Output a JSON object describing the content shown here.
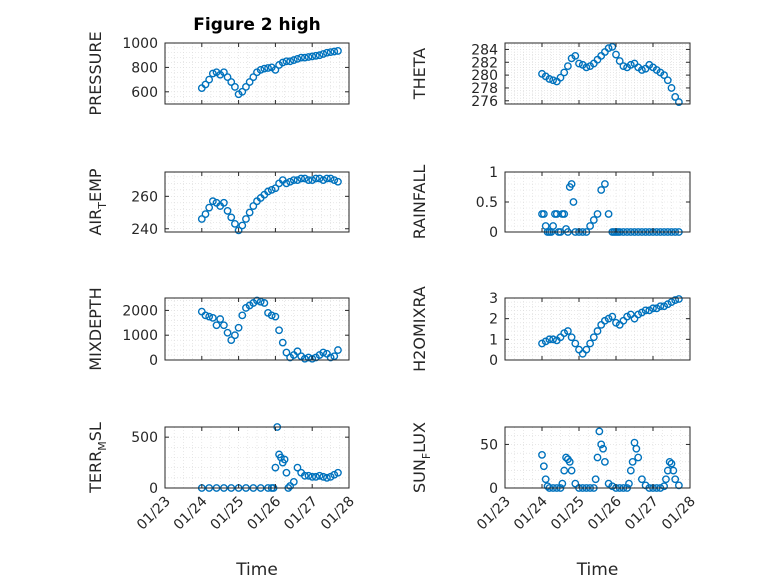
{
  "figure": {
    "title": "Figure 2 high",
    "marker_color": "#0072bd",
    "xaxis": {
      "range": [
        0,
        5
      ],
      "tick_values": [
        0,
        1,
        2,
        3,
        4,
        5
      ],
      "tick_labels": [
        "01/23",
        "01/24",
        "01/25",
        "01/26",
        "01/27",
        "01/28"
      ],
      "label": "Time"
    }
  },
  "chart_data": [
    {
      "id": "pressure",
      "type": "scatter",
      "ylabel": {
        "main": "PRESSURE",
        "sub": "",
        "tail": ""
      },
      "ylim": [
        500,
        1000
      ],
      "yticks": [
        600,
        800,
        1000
      ],
      "x": [
        1,
        1.1,
        1.2,
        1.3,
        1.4,
        1.5,
        1.6,
        1.7,
        1.8,
        1.9,
        2,
        2.1,
        2.2,
        2.3,
        2.4,
        2.5,
        2.6,
        2.7,
        2.8,
        2.9,
        3,
        3.1,
        3.2,
        3.3,
        3.4,
        3.5,
        3.6,
        3.7,
        3.8,
        3.9,
        4,
        4.1,
        4.2,
        4.3,
        4.4,
        4.5,
        4.6,
        4.7
      ],
      "y": [
        630,
        660,
        700,
        750,
        760,
        740,
        760,
        720,
        680,
        640,
        580,
        600,
        640,
        680,
        720,
        760,
        780,
        790,
        795,
        800,
        780,
        820,
        840,
        850,
        850,
        860,
        870,
        880,
        880,
        885,
        890,
        895,
        900,
        910,
        920,
        925,
        930,
        935
      ]
    },
    {
      "id": "theta",
      "type": "scatter",
      "ylabel": {
        "main": "THETA",
        "sub": "",
        "tail": ""
      },
      "ylim": [
        275.5,
        285
      ],
      "yticks": [
        276,
        278,
        280,
        282,
        284
      ],
      "x": [
        1,
        1.1,
        1.2,
        1.3,
        1.4,
        1.5,
        1.6,
        1.7,
        1.8,
        1.9,
        2,
        2.1,
        2.2,
        2.3,
        2.4,
        2.5,
        2.6,
        2.7,
        2.8,
        2.9,
        3,
        3.1,
        3.2,
        3.3,
        3.4,
        3.5,
        3.6,
        3.7,
        3.8,
        3.9,
        4,
        4.1,
        4.2,
        4.3,
        4.4,
        4.5,
        4.6,
        4.7
      ],
      "y": [
        280.2,
        279.8,
        279.4,
        279.2,
        279,
        279.6,
        280.4,
        281.4,
        282.6,
        283,
        281.8,
        281.6,
        281.2,
        281.4,
        281.8,
        282.4,
        283,
        283.6,
        284.2,
        284.4,
        283.2,
        282.2,
        281.4,
        281.2,
        281.6,
        281.8,
        281.2,
        280.8,
        281,
        281.6,
        281.2,
        280.8,
        280.4,
        280,
        279.2,
        278,
        276.6,
        275.8
      ]
    },
    {
      "id": "air_temp",
      "type": "scatter",
      "ylabel": {
        "main": "AIR",
        "sub": "T",
        "tail": "EMP"
      },
      "ylim": [
        238,
        275
      ],
      "yticks": [
        240,
        260
      ],
      "x": [
        1,
        1.1,
        1.2,
        1.3,
        1.4,
        1.5,
        1.6,
        1.7,
        1.8,
        1.9,
        2,
        2.1,
        2.2,
        2.3,
        2.4,
        2.5,
        2.6,
        2.7,
        2.8,
        2.9,
        3,
        3.1,
        3.2,
        3.3,
        3.4,
        3.5,
        3.6,
        3.7,
        3.8,
        3.9,
        4,
        4.1,
        4.2,
        4.3,
        4.4,
        4.5,
        4.6,
        4.7
      ],
      "y": [
        246,
        249,
        253,
        257,
        256,
        254,
        256,
        251,
        247,
        243,
        239,
        242,
        246,
        250,
        254,
        257,
        259,
        261,
        263,
        264,
        265,
        268,
        270,
        268,
        269,
        270,
        270,
        271,
        271,
        270,
        270,
        271,
        271,
        270,
        271,
        271,
        270,
        269
      ]
    },
    {
      "id": "rainfall",
      "type": "scatter",
      "ylabel": {
        "main": "RAINFALL",
        "sub": "",
        "tail": ""
      },
      "ylim": [
        0,
        1
      ],
      "yticks": [
        0,
        0.5,
        1
      ],
      "x": [
        1,
        1.05,
        1.1,
        1.15,
        1.2,
        1.25,
        1.3,
        1.35,
        1.4,
        1.45,
        1.5,
        1.55,
        1.6,
        1.65,
        1.7,
        1.75,
        1.8,
        1.85,
        1.9,
        2,
        2.1,
        2.2,
        2.3,
        2.4,
        2.5,
        2.6,
        2.7,
        2.8,
        2.9,
        2.95,
        3,
        3.05,
        3.1,
        3.2,
        3.3,
        3.4,
        3.5,
        3.6,
        3.7,
        3.8,
        3.9,
        4,
        4.1,
        4.2,
        4.3,
        4.4,
        4.5,
        4.6,
        4.7
      ],
      "y": [
        0.3,
        0.3,
        0.1,
        0,
        0,
        0,
        0.1,
        0.3,
        0.3,
        0,
        0,
        0.3,
        0.3,
        0.05,
        0,
        0.75,
        0.8,
        0.5,
        0,
        0,
        0,
        0,
        0.1,
        0.2,
        0.3,
        0.7,
        0.8,
        0.3,
        0,
        0,
        0,
        0,
        0,
        0,
        0,
        0,
        0,
        0,
        0,
        0,
        0,
        0,
        0,
        0,
        0,
        0,
        0,
        0,
        0
      ]
    },
    {
      "id": "mixdepth",
      "type": "scatter",
      "ylabel": {
        "main": "MIXDEPTH",
        "sub": "",
        "tail": ""
      },
      "ylim": [
        0,
        2500
      ],
      "yticks": [
        0,
        1000,
        2000
      ],
      "x": [
        1,
        1.1,
        1.2,
        1.3,
        1.4,
        1.5,
        1.6,
        1.7,
        1.8,
        1.9,
        2,
        2.1,
        2.2,
        2.3,
        2.4,
        2.5,
        2.6,
        2.7,
        2.8,
        2.9,
        3,
        3.1,
        3.2,
        3.3,
        3.4,
        3.5,
        3.6,
        3.7,
        3.8,
        3.9,
        4,
        4.1,
        4.2,
        4.3,
        4.4,
        4.5,
        4.6,
        4.7
      ],
      "y": [
        1950,
        1800,
        1750,
        1700,
        1400,
        1650,
        1400,
        1100,
        800,
        1000,
        1300,
        1800,
        2100,
        2200,
        2300,
        2400,
        2350,
        2300,
        1900,
        1800,
        1750,
        1200,
        700,
        300,
        100,
        200,
        350,
        150,
        50,
        100,
        50,
        100,
        200,
        300,
        250,
        100,
        150,
        400
      ]
    },
    {
      "id": "h2omixra",
      "type": "scatter",
      "ylabel": {
        "main": "H2OMIXRA",
        "sub": "",
        "tail": ""
      },
      "ylim": [
        0,
        3
      ],
      "yticks": [
        0,
        1,
        2,
        3
      ],
      "x": [
        1,
        1.1,
        1.2,
        1.3,
        1.4,
        1.5,
        1.6,
        1.7,
        1.8,
        1.9,
        2,
        2.1,
        2.2,
        2.3,
        2.4,
        2.5,
        2.6,
        2.7,
        2.8,
        2.9,
        3,
        3.1,
        3.2,
        3.3,
        3.4,
        3.5,
        3.6,
        3.7,
        3.8,
        3.9,
        4,
        4.1,
        4.2,
        4.3,
        4.4,
        4.5,
        4.6,
        4.7
      ],
      "y": [
        0.8,
        0.9,
        1,
        1,
        0.95,
        1.1,
        1.3,
        1.4,
        1.1,
        0.8,
        0.5,
        0.3,
        0.5,
        0.8,
        1.1,
        1.4,
        1.7,
        1.9,
        2,
        2.1,
        1.8,
        1.7,
        1.9,
        2.1,
        2.2,
        2.0,
        2.2,
        2.3,
        2.4,
        2.4,
        2.5,
        2.5,
        2.6,
        2.6,
        2.7,
        2.8,
        2.9,
        2.95
      ]
    },
    {
      "id": "terr_msl",
      "type": "scatter",
      "ylabel": {
        "main": "TERR",
        "sub": "M",
        "tail": "SL"
      },
      "ylim": [
        0,
        600
      ],
      "yticks": [
        0,
        500
      ],
      "x": [
        1,
        1.2,
        1.4,
        1.6,
        1.8,
        2,
        2.2,
        2.4,
        2.6,
        2.8,
        2.9,
        2.95,
        3,
        3.05,
        3.1,
        3.15,
        3.2,
        3.25,
        3.3,
        3.35,
        3.4,
        3.5,
        3.6,
        3.7,
        3.8,
        3.9,
        4,
        4.1,
        4.2,
        4.3,
        4.4,
        4.5,
        4.6,
        4.7
      ],
      "y": [
        0,
        0,
        0,
        0,
        0,
        0,
        0,
        0,
        0,
        0,
        0,
        0,
        200,
        600,
        330,
        300,
        250,
        280,
        150,
        0,
        20,
        60,
        200,
        150,
        120,
        120,
        110,
        110,
        120,
        110,
        100,
        110,
        130,
        150
      ]
    },
    {
      "id": "sun_flux",
      "type": "scatter",
      "ylabel": {
        "main": "SUN",
        "sub": "F",
        "tail": "LUX"
      },
      "ylim": [
        0,
        70
      ],
      "yticks": [
        0,
        50
      ],
      "x": [
        1,
        1.05,
        1.1,
        1.15,
        1.2,
        1.3,
        1.4,
        1.5,
        1.55,
        1.6,
        1.65,
        1.7,
        1.75,
        1.8,
        1.9,
        2,
        2.1,
        2.2,
        2.3,
        2.4,
        2.45,
        2.5,
        2.55,
        2.6,
        2.65,
        2.7,
        2.8,
        2.9,
        3,
        3.1,
        3.2,
        3.3,
        3.35,
        3.4,
        3.45,
        3.5,
        3.55,
        3.6,
        3.7,
        3.8,
        3.9,
        4,
        4.1,
        4.2,
        4.3,
        4.35,
        4.4,
        4.45,
        4.5,
        4.55,
        4.6,
        4.7
      ],
      "y": [
        38,
        25,
        10,
        2,
        0,
        0,
        0,
        0,
        5,
        20,
        35,
        33,
        30,
        20,
        5,
        0,
        0,
        0,
        0,
        0,
        10,
        35,
        65,
        50,
        45,
        30,
        5,
        2,
        0,
        0,
        0,
        0,
        5,
        20,
        30,
        52,
        45,
        35,
        10,
        3,
        0,
        0,
        0,
        0,
        2,
        10,
        20,
        30,
        28,
        20,
        10,
        3
      ]
    }
  ]
}
